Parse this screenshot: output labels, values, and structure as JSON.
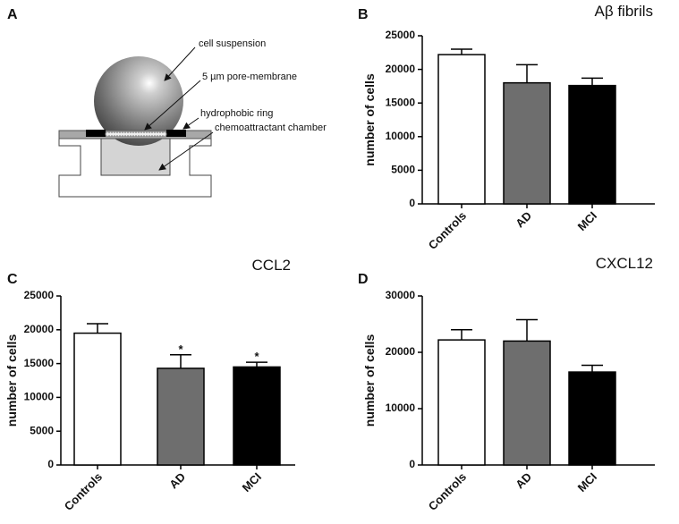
{
  "diagram": {
    "panel_label": "A",
    "labels": [
      "cell suspension",
      "5 µm pore-membrane",
      "hydrophobic ring",
      "chemoattractant chamber"
    ]
  },
  "chart_data": [
    {
      "type": "bar",
      "panel_label": "B",
      "title": "Aβ fibrils",
      "y_label": "number of cells",
      "categories": [
        "Controls",
        "AD",
        "MCI"
      ],
      "values": [
        22200,
        18000,
        17600
      ],
      "errors": [
        800,
        2700,
        1100
      ],
      "colors": [
        "#ffffff",
        "#6e6e6e",
        "#000000"
      ],
      "ylim": [
        0,
        25000
      ],
      "yticks": [
        0,
        5000,
        10000,
        15000,
        20000,
        25000
      ]
    },
    {
      "type": "bar",
      "panel_label": "C",
      "title": "CCL2",
      "y_label": "number of cells",
      "categories": [
        "Controls",
        "AD",
        "MCI"
      ],
      "values": [
        19500,
        14300,
        14500
      ],
      "errors": [
        1400,
        2000,
        700
      ],
      "significance": [
        null,
        "*",
        "*"
      ],
      "colors": [
        "#ffffff",
        "#6e6e6e",
        "#000000"
      ],
      "ylim": [
        0,
        25000
      ],
      "yticks": [
        0,
        5000,
        10000,
        15000,
        20000,
        25000
      ]
    },
    {
      "type": "bar",
      "panel_label": "D",
      "title": "CXCL12",
      "y_label": "number of cells",
      "categories": [
        "Controls",
        "AD",
        "MCI"
      ],
      "values": [
        22200,
        22000,
        16500
      ],
      "errors": [
        1800,
        3800,
        1200
      ],
      "colors": [
        "#ffffff",
        "#6e6e6e",
        "#000000"
      ],
      "ylim": [
        0,
        30000
      ],
      "yticks": [
        0,
        10000,
        20000,
        30000
      ]
    }
  ]
}
